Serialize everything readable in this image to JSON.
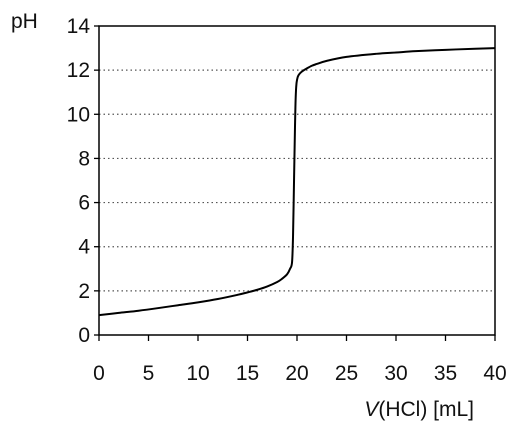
{
  "chart_data": {
    "type": "line",
    "title": "",
    "ylabel": "pH",
    "xlabel_italic": "V",
    "xlabel_rest": "(HCl) [mL]",
    "xlim": [
      0,
      40
    ],
    "ylim": [
      0,
      14
    ],
    "x_ticks": [
      0,
      5,
      10,
      15,
      20,
      25,
      30,
      35,
      40
    ],
    "y_ticks": [
      0,
      2,
      4,
      6,
      8,
      10,
      12,
      14
    ],
    "grid": "dotted horizontal lines at y ticks 2–12",
    "line_color": "#000000",
    "series": [
      {
        "x": [
          0,
          2,
          4,
          6,
          8,
          10,
          12,
          14,
          15,
          16,
          17,
          18,
          18.5,
          19,
          19.3,
          19.5,
          19.6,
          19.7,
          19.8,
          19.85,
          19.9,
          19.95,
          20,
          20.05,
          20.1,
          20.2,
          20.35,
          20.6,
          21,
          21.5,
          22,
          23,
          25,
          28,
          30,
          32,
          35,
          38,
          40
        ],
        "y": [
          0.9,
          1.0,
          1.1,
          1.22,
          1.35,
          1.48,
          1.63,
          1.82,
          1.93,
          2.05,
          2.2,
          2.4,
          2.55,
          2.75,
          3.0,
          3.3,
          4.5,
          7.0,
          9.5,
          10.5,
          11.1,
          11.4,
          11.55,
          11.65,
          11.72,
          11.8,
          11.88,
          11.97,
          12.08,
          12.2,
          12.28,
          12.42,
          12.6,
          12.74,
          12.8,
          12.86,
          12.92,
          12.97,
          13.0
        ]
      }
    ]
  }
}
